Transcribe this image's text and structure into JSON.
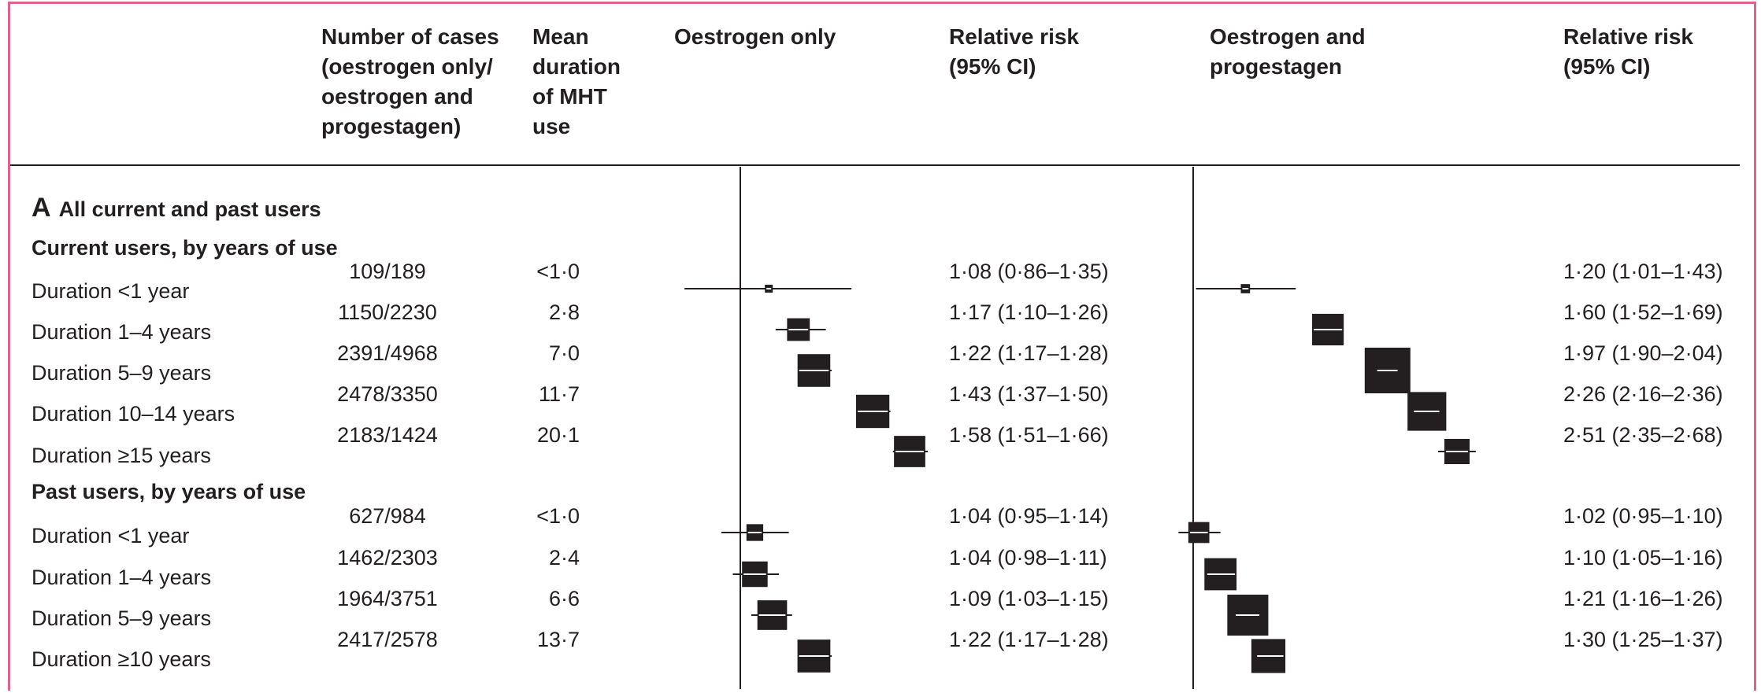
{
  "headers": {
    "cases": "Number of cases\n(oestrogen only/\noestrogen and\nprogestagen)",
    "duration": "Mean\nduration\nof MHT\nuse",
    "oestrogen_only": "Oestrogen only",
    "rr1": "Relative risk\n(95% CI)",
    "oestrogen_progestagen": "Oestrogen and\nprogestagen",
    "rr2": "Relative risk\n(95% CI)"
  },
  "section": {
    "letter": "A",
    "title": "All current and past users"
  },
  "groups": {
    "current": "Current users, by years of use",
    "past": "Past users, by years of use"
  },
  "rows": [
    {
      "label": "Duration <1 year",
      "cases": "109/189",
      "duration": "<1·0",
      "rr_e": "1·08 (0·86–1·35)",
      "rr_ep": "1·20 (1·01–1·43)"
    },
    {
      "label": "Duration 1–4 years",
      "cases": "1150/2230",
      "duration": "2·8",
      "rr_e": "1·17 (1·10–1·26)",
      "rr_ep": "1·60 (1·52–1·69)"
    },
    {
      "label": "Duration 5–9 years",
      "cases": "2391/4968",
      "duration": "7·0",
      "rr_e": "1·22 (1·17–1·28)",
      "rr_ep": "1·97 (1·90–2·04)"
    },
    {
      "label": "Duration 10–14 years",
      "cases": "2478/3350",
      "duration": "11·7",
      "rr_e": "1·43 (1·37–1·50)",
      "rr_ep": "2·26 (2·16–2·36)"
    },
    {
      "label": "Duration ≥15 years",
      "cases": "2183/1424",
      "duration": "20·1",
      "rr_e": "1·58 (1·51–1·66)",
      "rr_ep": "2·51 (2·35–2·68)"
    },
    {
      "label": "Duration <1 year",
      "cases": "627/984",
      "duration": "<1·0",
      "rr_e": "1·04 (0·95–1·14)",
      "rr_ep": "1·02 (0·95–1·10)"
    },
    {
      "label": "Duration 1–4 years",
      "cases": "1462/2303",
      "duration": "2·4",
      "rr_e": "1·04 (0·98–1·11)",
      "rr_ep": "1·10 (1·05–1·16)"
    },
    {
      "label": "Duration 5–9 years",
      "cases": "1964/3751",
      "duration": "6·6",
      "rr_e": "1·09 (1·03–1·15)",
      "rr_ep": "1·21 (1·16–1·26)"
    },
    {
      "label": "Duration ≥10 years",
      "cases": "2417/2578",
      "duration": "13·7",
      "rr_e": "1·22 (1·17–1·28)",
      "rr_ep": "1·30 (1·25–1·37)"
    }
  ],
  "chart_data": [
    {
      "type": "forest",
      "series_name": "Oestrogen only",
      "reference_line": 1,
      "scale": "log",
      "marker_color": "#231f20",
      "points": [
        {
          "rr": 1.08,
          "lo": 0.86,
          "hi": 1.35,
          "cases": 109
        },
        {
          "rr": 1.17,
          "lo": 1.1,
          "hi": 1.26,
          "cases": 1150
        },
        {
          "rr": 1.22,
          "lo": 1.17,
          "hi": 1.28,
          "cases": 2391
        },
        {
          "rr": 1.43,
          "lo": 1.37,
          "hi": 1.5,
          "cases": 2478
        },
        {
          "rr": 1.58,
          "lo": 1.51,
          "hi": 1.66,
          "cases": 2183
        },
        {
          "rr": 1.04,
          "lo": 0.95,
          "hi": 1.14,
          "cases": 627
        },
        {
          "rr": 1.04,
          "lo": 0.98,
          "hi": 1.11,
          "cases": 1462
        },
        {
          "rr": 1.09,
          "lo": 1.03,
          "hi": 1.15,
          "cases": 1964
        },
        {
          "rr": 1.22,
          "lo": 1.17,
          "hi": 1.28,
          "cases": 2417
        }
      ]
    },
    {
      "type": "forest",
      "series_name": "Oestrogen and progestagen",
      "reference_line": 1,
      "scale": "log",
      "marker_color": "#231f20",
      "points": [
        {
          "rr": 1.2,
          "lo": 1.01,
          "hi": 1.43,
          "cases": 189
        },
        {
          "rr": 1.6,
          "lo": 1.52,
          "hi": 1.69,
          "cases": 2230
        },
        {
          "rr": 1.97,
          "lo": 1.9,
          "hi": 2.04,
          "cases": 4968
        },
        {
          "rr": 2.26,
          "lo": 2.16,
          "hi": 2.36,
          "cases": 3350
        },
        {
          "rr": 2.51,
          "lo": 2.35,
          "hi": 2.68,
          "cases": 1424
        },
        {
          "rr": 1.02,
          "lo": 0.95,
          "hi": 1.1,
          "cases": 984
        },
        {
          "rr": 1.1,
          "lo": 1.05,
          "hi": 1.16,
          "cases": 2303
        },
        {
          "rr": 1.21,
          "lo": 1.16,
          "hi": 1.26,
          "cases": 3751
        },
        {
          "rr": 1.3,
          "lo": 1.25,
          "hi": 1.37,
          "cases": 2578
        }
      ]
    }
  ]
}
